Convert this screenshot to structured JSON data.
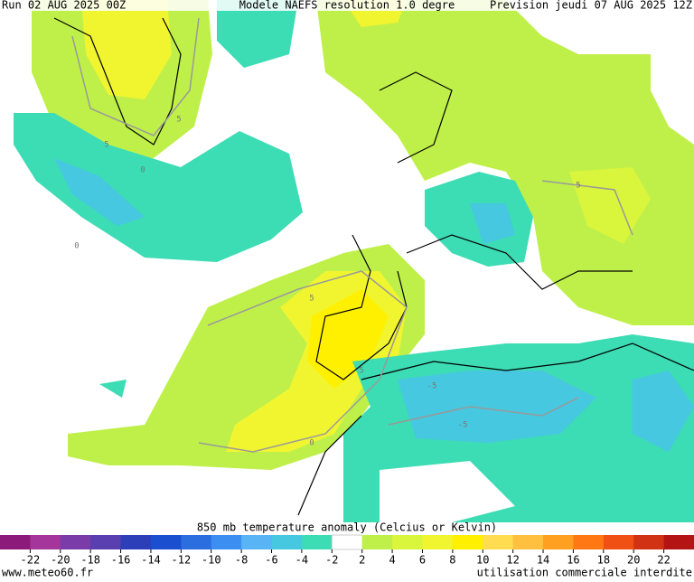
{
  "header": {
    "run": "Run 02 AUG 2025 00Z",
    "model": "Modele NAEFS resolution 1.0 degre",
    "forecast": "Prevision jeudi 07 AUG 2025 12Z"
  },
  "map": {
    "contour_labels": [
      "5",
      "0",
      "5",
      "0",
      "5",
      "-5",
      "-5",
      "5",
      "5",
      "0"
    ]
  },
  "colorbar": {
    "title": "850 mb temperature anomaly (Celcius or Kelvin)",
    "ticks": [
      -22,
      -20,
      -18,
      -16,
      -14,
      -12,
      -10,
      -8,
      -6,
      -4,
      -2,
      2,
      4,
      6,
      8,
      10,
      12,
      14,
      16,
      18,
      20,
      22
    ],
    "colors": [
      "#8c1a7a",
      "#a5359a",
      "#7a3ca8",
      "#5a3fb0",
      "#2d3fb8",
      "#1a4fd0",
      "#2a6ee0",
      "#3c8ef0",
      "#58b4f5",
      "#46c8e0",
      "#3cdcb4",
      "#ffffff",
      "#bff04a",
      "#d9f53c",
      "#f0f530",
      "#fff000",
      "#ffdc50",
      "#ffc040",
      "#ffa020",
      "#ff7814",
      "#f05014",
      "#d23214",
      "#b41414"
    ]
  },
  "footer": {
    "site": "www.meteo60.fr",
    "notice": "utilisation commerciale interdite"
  }
}
